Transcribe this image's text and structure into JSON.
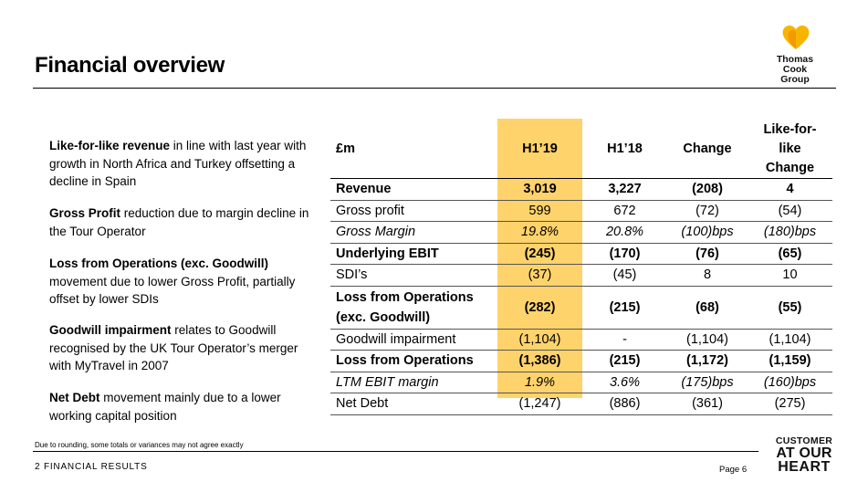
{
  "header": {
    "title": "Financial overview"
  },
  "logo": {
    "line1": "Thomas Cook",
    "line2": "Group",
    "heart_color": "#f7b500"
  },
  "bullets": [
    {
      "bold": "Like-for-like revenue",
      "text": "  in line with last year with growth in North Africa and Turkey offsetting a decline in Spain"
    },
    {
      "bold": "Gross Profit",
      "text": " reduction due to margin decline in the Tour Operator"
    },
    {
      "bold": "Loss from Operations (exc. Goodwill)",
      "text": " movement due to lower Gross Profit, partially offset by lower SDIs"
    },
    {
      "bold": "Goodwill impairment",
      "text": " relates to Goodwill recognised by the UK Tour Operator’s merger with MyTravel in 2007"
    },
    {
      "bold": "Net Debt",
      "text": " movement mainly due to a lower working capital position"
    }
  ],
  "table": {
    "headers": [
      "£m",
      "H1’19",
      "H1’18",
      "Change",
      "Like-for-like Change"
    ],
    "highlight_color": "#ffd36b",
    "rows": [
      {
        "label": "Revenue",
        "h119": "3,019",
        "h118": "3,227",
        "change": "(208)",
        "lfl": "4"
      },
      {
        "label": "Gross profit",
        "h119": "599",
        "h118": "672",
        "change": "(72)",
        "lfl": "(54)"
      },
      {
        "label": "Gross Margin",
        "h119": "19.8%",
        "h118": "20.8%",
        "change": "(100)bps",
        "lfl": "(180)bps"
      },
      {
        "label": "Underlying EBIT",
        "h119": "(245)",
        "h118": "(170)",
        "change": "(76)",
        "lfl": "(65)"
      },
      {
        "label": "SDI’s",
        "h119": "(37)",
        "h118": "(45)",
        "change": "8",
        "lfl": "10"
      },
      {
        "label": "Loss from Operations (exc. Goodwill)",
        "h119": "(282)",
        "h118": "(215)",
        "change": "(68)",
        "lfl": "(55)"
      },
      {
        "label": "Goodwill impairment",
        "h119": "(1,104)",
        "h118": "-",
        "change": "(1,104)",
        "lfl": "(1,104)"
      },
      {
        "label": "Loss from Operations",
        "h119": "(1,386)",
        "h118": "(215)",
        "change": "(1,172)",
        "lfl": "(1,159)"
      },
      {
        "label": "LTM EBIT margin",
        "h119": "1.9%",
        "h118": "3.6%",
        "change": "(175)bps",
        "lfl": "(160)bps"
      },
      {
        "label": "Net Debt",
        "h119": "(1,247)",
        "h118": "(886)",
        "change": "(361)",
        "lfl": "(275)"
      }
    ]
  },
  "footer": {
    "footnote": "Due to rounding, some totals or variances may not agree exactly",
    "section": "2 FINANCIAL RESULTS",
    "page": "Page 6",
    "tagline": [
      "CUSTOMER",
      "AT OUR",
      "HEART"
    ]
  }
}
